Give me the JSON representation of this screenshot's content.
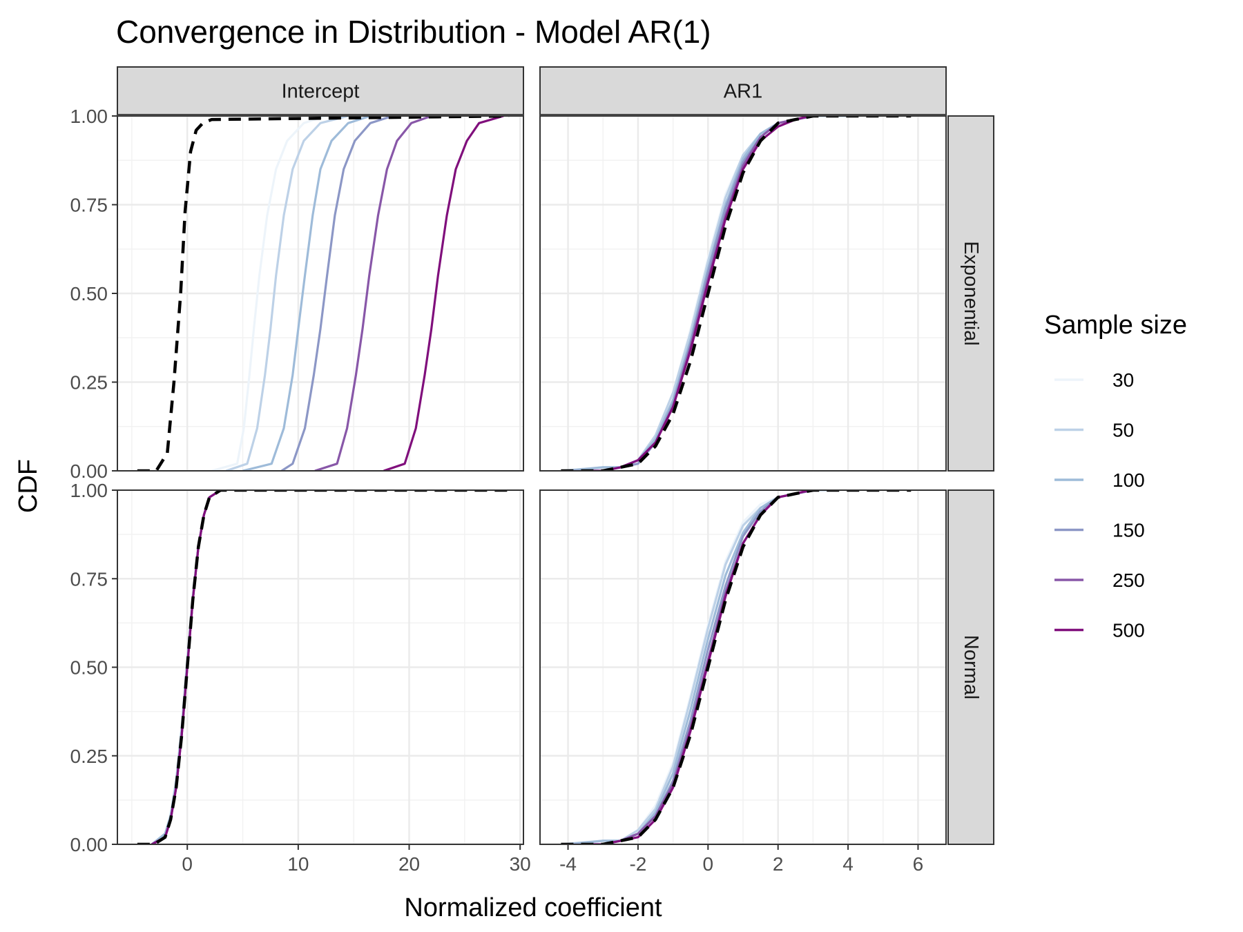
{
  "chart_data": {
    "type": "line",
    "title": "Convergence in Distribution - Model AR(1)",
    "xlabel": "Normalized coefficient",
    "ylabel": "CDF",
    "legend": {
      "title": "Sample size",
      "placement": "right"
    },
    "columns": [
      "Intercept",
      "AR1"
    ],
    "rows": [
      "Exponential",
      "Normal"
    ],
    "y_ticks": [
      "0.00",
      "0.25",
      "0.50",
      "0.75",
      "1.00"
    ],
    "ylim": [
      0,
      1
    ],
    "x_axes": [
      {
        "panel": "Intercept",
        "xlim": [
          -6.3,
          30.3
        ],
        "ticks": [
          0,
          10,
          20,
          30
        ],
        "tick_labels": [
          "0",
          "10",
          "20",
          "30"
        ]
      },
      {
        "panel": "AR1",
        "xlim": [
          -4.8,
          6.8
        ],
        "ticks": [
          -4,
          -2,
          0,
          2,
          4,
          6
        ],
        "tick_labels": [
          "-4",
          "-2",
          "0",
          "2",
          "4",
          "6"
        ]
      }
    ],
    "grid": true,
    "series": [
      {
        "name": "30",
        "color": "#edf4fa"
      },
      {
        "name": "50",
        "color": "#bdd1e7"
      },
      {
        "name": "100",
        "color": "#9ebbd9"
      },
      {
        "name": "150",
        "color": "#8c97c6"
      },
      {
        "name": "250",
        "color": "#8857a8"
      },
      {
        "name": "500",
        "color": "#800f7c"
      }
    ],
    "reference_line": {
      "color": "#000000",
      "style": "dashed"
    },
    "panels": [
      {
        "column": "Intercept",
        "row": "Exponential",
        "reference": {
          "x": [
            -4.5,
            -2.8,
            -1.8,
            -1.2,
            -0.6,
            -0.2,
            0.3,
            0.8,
            1.4,
            2.2,
            29
          ],
          "y": [
            0,
            0.0,
            0.05,
            0.25,
            0.5,
            0.73,
            0.9,
            0.96,
            0.98,
            0.99,
            1
          ]
        },
        "lines": [
          {
            "x": [
              2.2,
              4.5,
              5.1,
              5.6,
              6.0,
              6.5,
              7.2,
              8.0,
              9.0,
              10.5,
              12.5
            ],
            "y": [
              0.0,
              0.02,
              0.12,
              0.27,
              0.4,
              0.55,
              0.72,
              0.85,
              0.93,
              0.98,
              1.0
            ]
          },
          {
            "x": [
              3.5,
              5.4,
              6.3,
              7.0,
              7.5,
              8.0,
              8.7,
              9.5,
              10.5,
              12,
              14.5
            ],
            "y": [
              0.0,
              0.02,
              0.12,
              0.27,
              0.4,
              0.55,
              0.72,
              0.85,
              0.93,
              0.98,
              1.0
            ]
          },
          {
            "x": [
              5.0,
              7.6,
              8.7,
              9.5,
              10.0,
              10.6,
              11.3,
              12.0,
              13.0,
              14.5,
              16.5
            ],
            "y": [
              0.0,
              0.02,
              0.12,
              0.27,
              0.4,
              0.55,
              0.72,
              0.85,
              0.93,
              0.98,
              1.0
            ]
          },
          {
            "x": [
              8.5,
              9.5,
              10.6,
              11.4,
              12.0,
              12.6,
              13.3,
              14.1,
              15.1,
              16.5,
              18.5
            ],
            "y": [
              0.0,
              0.02,
              0.12,
              0.27,
              0.4,
              0.55,
              0.72,
              0.85,
              0.93,
              0.98,
              1.0
            ]
          },
          {
            "x": [
              11.5,
              13.5,
              14.4,
              15.2,
              15.8,
              16.4,
              17.2,
              18.0,
              18.9,
              20.2,
              22.0
            ],
            "y": [
              0.0,
              0.02,
              0.12,
              0.27,
              0.4,
              0.55,
              0.72,
              0.85,
              0.93,
              0.98,
              1.0
            ]
          },
          {
            "x": [
              17.7,
              19.6,
              20.6,
              21.4,
              22.0,
              22.6,
              23.4,
              24.2,
              25.2,
              26.3,
              28.5
            ],
            "y": [
              0.0,
              0.02,
              0.12,
              0.27,
              0.4,
              0.55,
              0.72,
              0.85,
              0.93,
              0.98,
              1.0
            ]
          }
        ]
      },
      {
        "column": "AR1",
        "row": "Exponential",
        "reference": {
          "x": [
            -4.2,
            -3.0,
            -2.5,
            -2.0,
            -1.5,
            -1.0,
            -0.5,
            0,
            0.5,
            1.0,
            1.5,
            2.0,
            2.5,
            3.0,
            5.8
          ],
          "y": [
            0,
            0.0,
            0.01,
            0.02,
            0.07,
            0.16,
            0.31,
            0.5,
            0.69,
            0.84,
            0.93,
            0.98,
            0.99,
            1.0,
            1.0
          ]
        },
        "lines": [
          {
            "x": [
              -4.2,
              -3.0,
              -2.5,
              -2.0,
              -1.5,
              -1.0,
              -0.5,
              0,
              0.5,
              1.0,
              1.5,
              2.0,
              2.5,
              3.0,
              4.0
            ],
            "y": [
              0,
              0.01,
              0.01,
              0.03,
              0.1,
              0.22,
              0.4,
              0.6,
              0.78,
              0.89,
              0.95,
              0.98,
              0.99,
              1.0,
              1.0
            ]
          },
          {
            "x": [
              -4.2,
              -3.0,
              -2.5,
              -2.0,
              -1.5,
              -1.0,
              -0.5,
              0,
              0.5,
              1.0,
              1.5,
              2.0,
              2.5,
              3.0,
              4.0
            ],
            "y": [
              0,
              0.01,
              0.01,
              0.03,
              0.1,
              0.22,
              0.39,
              0.59,
              0.77,
              0.89,
              0.95,
              0.98,
              0.99,
              1.0,
              1.0
            ]
          },
          {
            "x": [
              -4.0,
              -3.0,
              -2.5,
              -2.0,
              -1.5,
              -1.0,
              -0.5,
              0,
              0.5,
              1.0,
              1.5,
              2.0,
              2.5,
              3.0
            ],
            "y": [
              0,
              0.01,
              0.01,
              0.03,
              0.09,
              0.2,
              0.37,
              0.57,
              0.75,
              0.88,
              0.95,
              0.98,
              0.99,
              1.0
            ]
          },
          {
            "x": [
              -4.0,
              -3.0,
              -2.5,
              -2.0,
              -1.5,
              -1.0,
              -0.5,
              0,
              0.5,
              1.0,
              1.5,
              2.0,
              2.5,
              3.0
            ],
            "y": [
              0,
              0.0,
              0.01,
              0.02,
              0.08,
              0.19,
              0.36,
              0.56,
              0.74,
              0.87,
              0.94,
              0.98,
              0.99,
              1.0
            ]
          },
          {
            "x": [
              -3.5,
              -3.0,
              -2.5,
              -2.0,
              -1.5,
              -1.0,
              -0.5,
              0,
              0.5,
              1.0,
              1.5,
              2.0,
              2.5,
              3.0
            ],
            "y": [
              0,
              0.0,
              0.01,
              0.03,
              0.08,
              0.18,
              0.35,
              0.54,
              0.72,
              0.86,
              0.94,
              0.98,
              0.99,
              1.0
            ]
          },
          {
            "x": [
              -3.3,
              -3.0,
              -2.5,
              -2.0,
              -1.5,
              -1.0,
              -0.5,
              0,
              0.5,
              1.0,
              1.5,
              2.0,
              2.5,
              2.9
            ],
            "y": [
              0,
              0.0,
              0.01,
              0.03,
              0.08,
              0.18,
              0.34,
              0.53,
              0.71,
              0.85,
              0.93,
              0.97,
              0.99,
              1.0
            ]
          }
        ]
      },
      {
        "column": "Intercept",
        "row": "Normal",
        "reference": {
          "x": [
            -4.5,
            -3.0,
            -2.0,
            -1.5,
            -1.0,
            -0.5,
            0,
            0.5,
            1.0,
            1.5,
            2.0,
            3.0,
            29
          ],
          "y": [
            0,
            0.0,
            0.02,
            0.07,
            0.16,
            0.31,
            0.5,
            0.69,
            0.84,
            0.93,
            0.98,
            1.0,
            1.0
          ]
        },
        "lines": [
          {
            "x": [
              -3.2,
              -2.0,
              -1.5,
              -1.0,
              -0.5,
              0,
              0.5,
              1.0,
              1.5,
              2.0,
              3.0
            ],
            "y": [
              0,
              0.03,
              0.09,
              0.19,
              0.34,
              0.53,
              0.71,
              0.85,
              0.93,
              0.98,
              1.0
            ]
          },
          {
            "x": [
              -3.2,
              -2.0,
              -1.5,
              -1.0,
              -0.5,
              0,
              0.5,
              1.0,
              1.5,
              2.0,
              3.0
            ],
            "y": [
              0,
              0.03,
              0.08,
              0.18,
              0.33,
              0.52,
              0.7,
              0.84,
              0.93,
              0.98,
              1.0
            ]
          },
          {
            "x": [
              -3.2,
              -2.0,
              -1.5,
              -1.0,
              -0.5,
              0,
              0.5,
              1.0,
              1.5,
              2.0,
              3.0
            ],
            "y": [
              0,
              0.03,
              0.08,
              0.17,
              0.32,
              0.51,
              0.69,
              0.84,
              0.93,
              0.98,
              1.0
            ]
          },
          {
            "x": [
              -3.2,
              -2.0,
              -1.5,
              -1.0,
              -0.5,
              0,
              0.5,
              1.0,
              1.5,
              2.0,
              3.0
            ],
            "y": [
              0,
              0.02,
              0.07,
              0.16,
              0.31,
              0.5,
              0.69,
              0.84,
              0.93,
              0.98,
              1.0
            ]
          },
          {
            "x": [
              -3.2,
              -2.0,
              -1.5,
              -1.0,
              -0.5,
              0,
              0.5,
              1.0,
              1.5,
              2.0,
              3.0
            ],
            "y": [
              0,
              0.02,
              0.07,
              0.16,
              0.31,
              0.5,
              0.69,
              0.84,
              0.93,
              0.98,
              1.0
            ]
          },
          {
            "x": [
              -3.2,
              -2.0,
              -1.5,
              -1.0,
              -0.5,
              0,
              0.5,
              1.0,
              1.5,
              2.0,
              3.0
            ],
            "y": [
              0,
              0.02,
              0.07,
              0.16,
              0.31,
              0.5,
              0.69,
              0.84,
              0.93,
              0.98,
              1.0
            ]
          }
        ]
      },
      {
        "column": "AR1",
        "row": "Normal",
        "reference": {
          "x": [
            -4.2,
            -3.0,
            -2.5,
            -2.0,
            -1.5,
            -1.0,
            -0.5,
            0,
            0.5,
            1.0,
            1.5,
            2.0,
            2.5,
            3.0,
            5.8
          ],
          "y": [
            0,
            0.0,
            0.01,
            0.02,
            0.07,
            0.16,
            0.31,
            0.5,
            0.69,
            0.84,
            0.93,
            0.98,
            0.99,
            1.0,
            1.0
          ]
        },
        "lines": [
          {
            "x": [
              -4.2,
              -3.0,
              -2.5,
              -2.0,
              -1.5,
              -1.0,
              -0.5,
              0,
              0.5,
              1.0,
              1.5,
              2.0,
              2.5,
              3.0,
              3.5
            ],
            "y": [
              0,
              0.01,
              0.01,
              0.04,
              0.11,
              0.23,
              0.42,
              0.62,
              0.8,
              0.91,
              0.96,
              0.98,
              0.99,
              1.0,
              1.0
            ]
          },
          {
            "x": [
              -4.2,
              -3.0,
              -2.5,
              -2.0,
              -1.5,
              -1.0,
              -0.5,
              0,
              0.5,
              1.0,
              1.5,
              2.0,
              2.5,
              3.0,
              3.5
            ],
            "y": [
              0,
              0.01,
              0.01,
              0.04,
              0.1,
              0.22,
              0.41,
              0.61,
              0.79,
              0.9,
              0.95,
              0.98,
              0.99,
              1.0,
              1.0
            ]
          },
          {
            "x": [
              -4.0,
              -3.0,
              -2.5,
              -2.0,
              -1.5,
              -1.0,
              -0.5,
              0,
              0.5,
              1.0,
              1.5,
              2.0,
              2.5,
              3.0
            ],
            "y": [
              0,
              0.01,
              0.01,
              0.03,
              0.09,
              0.2,
              0.38,
              0.58,
              0.76,
              0.88,
              0.95,
              0.98,
              0.99,
              1.0
            ]
          },
          {
            "x": [
              -4.0,
              -3.0,
              -2.5,
              -2.0,
              -1.5,
              -1.0,
              -0.5,
              0,
              0.5,
              1.0,
              1.5,
              2.0,
              2.5,
              3.0
            ],
            "y": [
              0,
              0.0,
              0.01,
              0.03,
              0.08,
              0.18,
              0.35,
              0.55,
              0.73,
              0.87,
              0.94,
              0.98,
              0.99,
              1.0
            ]
          },
          {
            "x": [
              -3.5,
              -3.0,
              -2.5,
              -2.0,
              -1.5,
              -1.0,
              -0.5,
              0,
              0.5,
              1.0,
              1.5,
              2.0,
              2.5,
              3.0
            ],
            "y": [
              0,
              0.0,
              0.01,
              0.03,
              0.08,
              0.17,
              0.33,
              0.52,
              0.71,
              0.85,
              0.93,
              0.98,
              0.99,
              1.0
            ]
          },
          {
            "x": [
              -3.3,
              -3.0,
              -2.5,
              -2.0,
              -1.5,
              -1.0,
              -0.5,
              0,
              0.5,
              1.0,
              1.5,
              2.0,
              2.5,
              2.9
            ],
            "y": [
              0,
              0.0,
              0.01,
              0.02,
              0.07,
              0.16,
              0.32,
              0.51,
              0.7,
              0.85,
              0.93,
              0.98,
              0.99,
              1.0
            ]
          }
        ]
      }
    ]
  }
}
